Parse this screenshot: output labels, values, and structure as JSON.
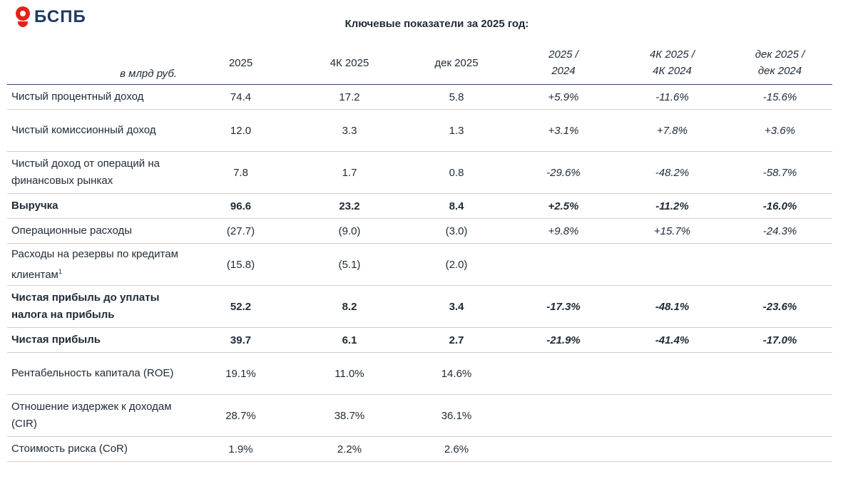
{
  "brand": {
    "name": "БСПБ",
    "red": "#e2231a",
    "navy": "#1e3a5f",
    "icon": "bspb-logo-icon"
  },
  "title": "Ключевые показатели за 2025 год:",
  "table": {
    "unit_label": "в млрд руб.",
    "headers": [
      "2025",
      "4К 2025",
      "дек 2025"
    ],
    "yoy_headers": [
      {
        "top": "2025 /",
        "bottom": "2024"
      },
      {
        "top": "4К 2025 /",
        "bottom": "4К 2024"
      },
      {
        "top": "дек 2025 /",
        "bottom": "дек 2024"
      }
    ],
    "rows": [
      {
        "label": "Чистый процентный доход",
        "values": [
          "74.4",
          "17.2",
          "5.8"
        ],
        "changes": [
          "+5.9%",
          "-11.6%",
          "-15.6%"
        ]
      },
      {
        "label": "Чистый комиссионный доход",
        "values": [
          "12.0",
          "3.3",
          "1.3"
        ],
        "changes": [
          "+3.1%",
          "+7.8%",
          "+3.6%"
        ]
      },
      {
        "label": "Чистый доход от операций на финансовых рынках",
        "values": [
          "7.8",
          "1.7",
          "0.8"
        ],
        "changes": [
          "-29.6%",
          "-48.2%",
          "-58.7%"
        ]
      },
      {
        "label": "Выручка",
        "values": [
          "96.6",
          "23.2",
          "8.4"
        ],
        "changes": [
          "+2.5%",
          "-11.2%",
          "-16.0%"
        ]
      },
      {
        "label": "Операционные расходы",
        "values": [
          "(27.7)",
          "(9.0)",
          "(3.0)"
        ],
        "changes": [
          "+9.8%",
          "+15.7%",
          "-24.3%"
        ]
      },
      {
        "label": "Расходы на резервы по кредитам клиентам",
        "footnote": "1",
        "values": [
          "(15.8)",
          "(5.1)",
          "(2.0)"
        ],
        "changes": [
          "",
          "",
          ""
        ]
      },
      {
        "label": "Чистая прибыль до уплаты налога на прибыль",
        "values": [
          "52.2",
          "8.2",
          "3.4"
        ],
        "changes": [
          "-17.3%",
          "-48.1%",
          "-23.6%"
        ]
      },
      {
        "label": "Чистая прибыль",
        "values": [
          "39.7",
          "6.1",
          "2.7"
        ],
        "changes": [
          "-21.9%",
          "-41.4%",
          "-17.0%"
        ]
      },
      {
        "label": "Рентабельность капитала (ROE)",
        "values": [
          "19.1%",
          "11.0%",
          "14.6%"
        ],
        "changes": [
          "",
          "",
          ""
        ]
      },
      {
        "label": "Отношение издержек к доходам (CIR)",
        "values": [
          "28.7%",
          "38.7%",
          "36.1%"
        ],
        "changes": [
          "",
          "",
          ""
        ]
      },
      {
        "label": "Стоимость риска (CoR)",
        "values": [
          "1.9%",
          "2.2%",
          "2.6%"
        ],
        "changes": [
          "",
          "",
          ""
        ]
      }
    ]
  }
}
